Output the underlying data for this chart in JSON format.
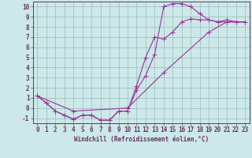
{
  "bg_color": "#cce8e8",
  "line_color": "#993399",
  "grid_color": "#99bbbb",
  "axis_color": "#663366",
  "xlabel": "Windchill (Refroidissement éolien,°C)",
  "ylim": [
    -1.5,
    10.5
  ],
  "xlim": [
    -0.5,
    23.5
  ],
  "yticks": [
    -1,
    0,
    1,
    2,
    3,
    4,
    5,
    6,
    7,
    8,
    9,
    10
  ],
  "xticks": [
    0,
    1,
    2,
    3,
    4,
    5,
    6,
    7,
    8,
    9,
    10,
    11,
    12,
    13,
    14,
    15,
    16,
    17,
    18,
    19,
    20,
    21,
    22,
    23
  ],
  "series1_x": [
    0,
    1,
    2,
    3,
    4,
    5,
    6,
    7,
    8,
    9,
    10,
    11,
    12,
    13,
    14,
    15,
    16,
    17,
    18,
    19,
    20,
    21,
    22,
    23
  ],
  "series1_y": [
    1.2,
    0.5,
    -0.3,
    -0.7,
    -1.1,
    -0.7,
    -0.7,
    -1.2,
    -1.2,
    -0.3,
    -0.3,
    1.8,
    3.2,
    5.3,
    10.0,
    10.3,
    10.3,
    10.0,
    9.3,
    8.7,
    8.5,
    8.7,
    8.5,
    8.5
  ],
  "series2_x": [
    0,
    1,
    2,
    3,
    4,
    5,
    6,
    7,
    8,
    9,
    10,
    11,
    12,
    13,
    14,
    15,
    16,
    17,
    18,
    19,
    20,
    21,
    22,
    23
  ],
  "series2_y": [
    1.2,
    0.5,
    -0.3,
    -0.7,
    -1.1,
    -0.7,
    -0.7,
    -1.2,
    -1.2,
    -0.3,
    -0.3,
    2.2,
    5.0,
    7.0,
    6.8,
    7.5,
    8.5,
    8.8,
    8.7,
    8.7,
    8.5,
    8.5,
    8.5,
    8.5
  ],
  "series3_x": [
    0,
    4,
    10,
    14,
    19,
    21,
    23
  ],
  "series3_y": [
    1.2,
    -0.3,
    0.0,
    3.5,
    7.5,
    8.5,
    8.5
  ],
  "marker_size": 2.5,
  "linewidth": 0.8,
  "tick_fontsize": 5.5,
  "label_fontsize": 5.5
}
